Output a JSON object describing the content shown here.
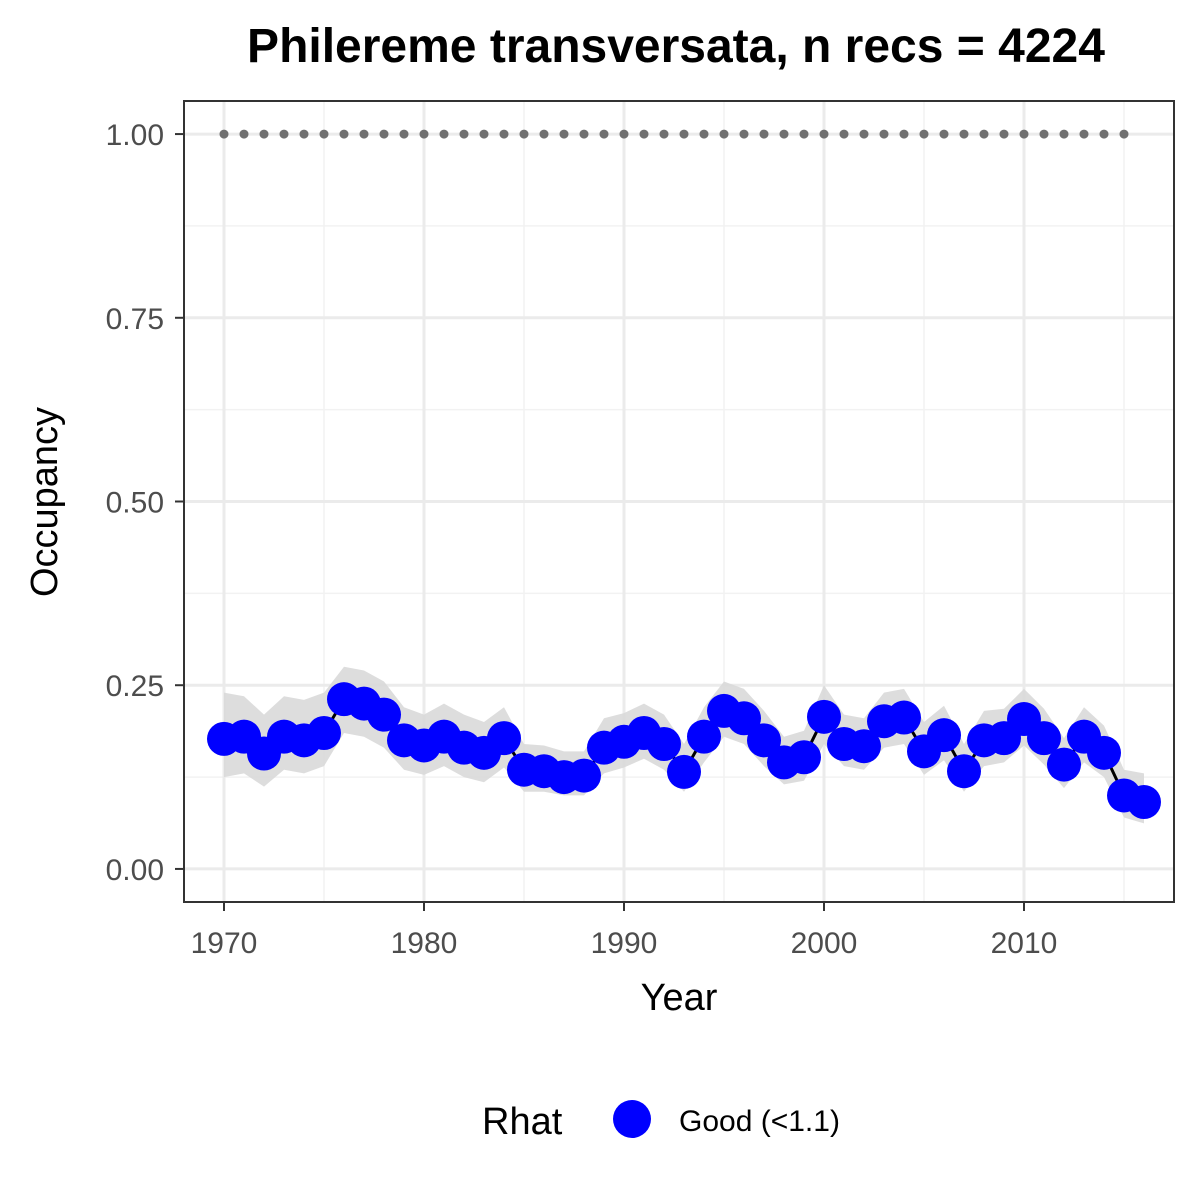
{
  "chart_data": {
    "type": "line",
    "title": "Philereme transversata, n recs = 4224",
    "xlabel": "Year",
    "ylabel": "Occupancy",
    "xlim": [
      1968,
      2017.5
    ],
    "ylim": [
      -0.045,
      1.045
    ],
    "x_ticks": [
      1970,
      1980,
      1990,
      2000,
      2010
    ],
    "x_tick_labels": [
      "1970",
      "1980",
      "1990",
      "2000",
      "2010"
    ],
    "y_ticks": [
      0,
      0.25,
      0.5,
      0.75,
      1.0
    ],
    "y_tick_labels": [
      "0.00",
      "0.25",
      "0.50",
      "0.75",
      "1.00"
    ],
    "grid": true,
    "series": [
      {
        "role": "mean",
        "x": [
          1970,
          1971,
          1972,
          1973,
          1974,
          1975,
          1976,
          1977,
          1978,
          1979,
          1980,
          1981,
          1982,
          1983,
          1984,
          1985,
          1986,
          1987,
          1988,
          1989,
          1990,
          1991,
          1992,
          1993,
          1994,
          1995,
          1996,
          1997,
          1998,
          1999,
          2000,
          2001,
          2002,
          2003,
          2004,
          2005,
          2006,
          2007,
          2008,
          2009,
          2010,
          2011,
          2012,
          2013,
          2014,
          2015,
          2016
        ],
        "values": [
          0.177,
          0.18,
          0.157,
          0.18,
          0.175,
          0.185,
          0.231,
          0.225,
          0.21,
          0.175,
          0.168,
          0.18,
          0.165,
          0.158,
          0.178,
          0.135,
          0.133,
          0.125,
          0.127,
          0.165,
          0.173,
          0.185,
          0.17,
          0.132,
          0.18,
          0.215,
          0.205,
          0.175,
          0.145,
          0.152,
          0.207,
          0.17,
          0.167,
          0.201,
          0.206,
          0.16,
          0.182,
          0.133,
          0.175,
          0.178,
          0.204,
          0.178,
          0.142,
          0.18,
          0.158,
          0.1,
          0.091
        ],
        "ci_lower": [
          0.125,
          0.13,
          0.112,
          0.135,
          0.13,
          0.14,
          0.185,
          0.18,
          0.165,
          0.135,
          0.128,
          0.14,
          0.125,
          0.118,
          0.138,
          0.105,
          0.105,
          0.1,
          0.1,
          0.13,
          0.138,
          0.15,
          0.135,
          0.105,
          0.145,
          0.18,
          0.17,
          0.14,
          0.115,
          0.12,
          0.17,
          0.14,
          0.135,
          0.165,
          0.17,
          0.128,
          0.148,
          0.105,
          0.14,
          0.145,
          0.168,
          0.142,
          0.11,
          0.145,
          0.125,
          0.07,
          0.062
        ],
        "ci_upper": [
          0.24,
          0.235,
          0.21,
          0.235,
          0.23,
          0.24,
          0.275,
          0.27,
          0.255,
          0.22,
          0.21,
          0.225,
          0.21,
          0.2,
          0.22,
          0.17,
          0.168,
          0.16,
          0.16,
          0.205,
          0.212,
          0.225,
          0.21,
          0.17,
          0.22,
          0.255,
          0.245,
          0.215,
          0.18,
          0.188,
          0.25,
          0.21,
          0.205,
          0.24,
          0.245,
          0.2,
          0.222,
          0.17,
          0.215,
          0.218,
          0.245,
          0.218,
          0.178,
          0.22,
          0.195,
          0.135,
          0.13
        ]
      },
      {
        "role": "reference",
        "x": [
          1970,
          1971,
          1972,
          1973,
          1974,
          1975,
          1976,
          1977,
          1978,
          1979,
          1980,
          1981,
          1982,
          1983,
          1984,
          1985,
          1986,
          1987,
          1988,
          1989,
          1990,
          1991,
          1992,
          1993,
          1994,
          1995,
          1996,
          1997,
          1998,
          1999,
          2000,
          2001,
          2002,
          2003,
          2004,
          2005,
          2006,
          2007,
          2008,
          2009,
          2010,
          2011,
          2012,
          2013,
          2014,
          2015
        ],
        "values": [
          1,
          1,
          1,
          1,
          1,
          1,
          1,
          1,
          1,
          1,
          1,
          1,
          1,
          1,
          1,
          1,
          1,
          1,
          1,
          1,
          1,
          1,
          1,
          1,
          1,
          1,
          1,
          1,
          1,
          1,
          1,
          1,
          1,
          1,
          1,
          1,
          1,
          1,
          1,
          1,
          1,
          1,
          1,
          1,
          1,
          1
        ]
      }
    ],
    "legend": {
      "title": "Rhat",
      "position": "bottom",
      "entries": [
        {
          "label": "Good (<1.1)",
          "color": "#0000ff"
        }
      ]
    },
    "colors": {
      "points": "#0000ff",
      "line": "#000000",
      "ribbon": "#d9d9d9",
      "reference": "#707070",
      "grid_major": "#ebebeb",
      "grid_minor": "#f2f2f2",
      "border": "#333333"
    }
  }
}
